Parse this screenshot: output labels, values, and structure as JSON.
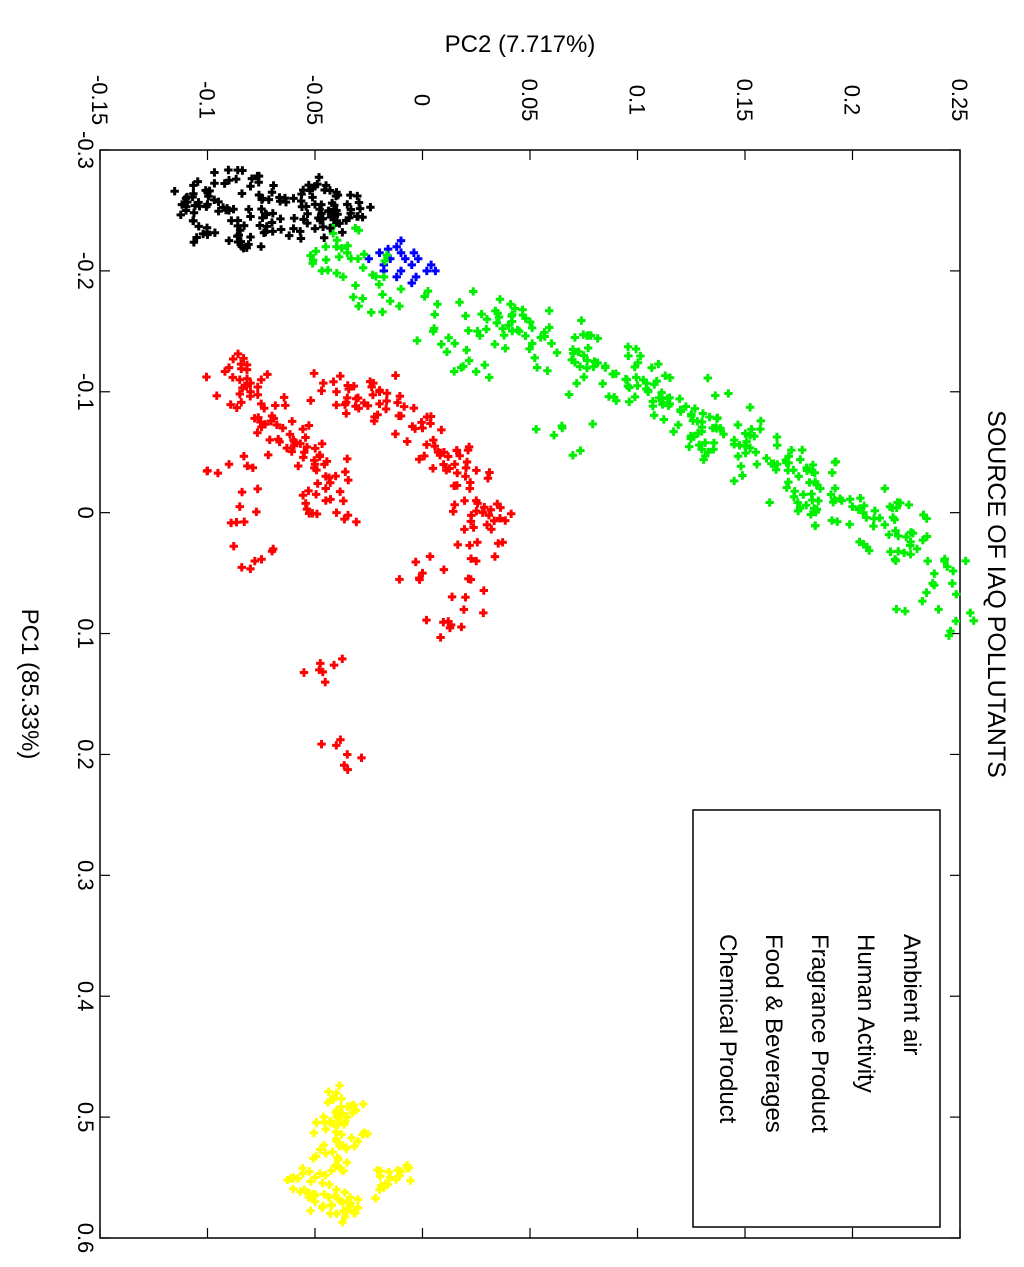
{
  "chart_data": {
    "type": "scatter",
    "title": "SOURCE OF IAQ POLLUTANTS",
    "xlabel": "PC1 (85.33%)",
    "ylabel": "PC2 (7.717%)",
    "xlim": [
      -0.3,
      0.6
    ],
    "ylim": [
      -0.15,
      0.25
    ],
    "xticks": [
      "-0.3",
      "-0.2",
      "-0.1",
      "0",
      "0.1",
      "0.2",
      "0.3",
      "0.4",
      "0.5",
      "0.6"
    ],
    "yticks": [
      "-0.15",
      "-0.1",
      "-0.05",
      "0",
      "0.05",
      "0.1",
      "0.15",
      "0.2",
      "0.25"
    ],
    "orientation": "rotated-90-clockwise",
    "grid": false,
    "legend_position": "bottom-right",
    "series": [
      {
        "name": "Ambient air",
        "color": "#0000FF",
        "points": [
          [
            -0.215,
            -0.01
          ],
          [
            -0.21,
            -0.015
          ],
          [
            -0.205,
            -0.005
          ],
          [
            -0.2,
            -0.01
          ],
          [
            -0.2,
            0.002
          ],
          [
            -0.195,
            -0.003
          ],
          [
            -0.21,
            -0.002
          ],
          [
            -0.205,
            -0.018
          ],
          [
            -0.22,
            -0.012
          ],
          [
            -0.19,
            -0.005
          ],
          [
            -0.2,
            -0.018
          ],
          [
            -0.21,
            -0.025
          ],
          [
            -0.215,
            -0.02
          ],
          [
            -0.225,
            -0.01
          ],
          [
            -0.195,
            -0.012
          ],
          [
            -0.205,
            0.004
          ],
          [
            -0.2,
            0.006
          ],
          [
            -0.21,
            -0.008
          ],
          [
            -0.215,
            -0.004
          ],
          [
            -0.218,
            -0.016
          ]
        ]
      },
      {
        "name": "Human Activity",
        "color": "#00EE00",
        "points": [
          [
            -0.22,
            -0.045
          ],
          [
            -0.22,
            -0.04
          ],
          [
            -0.215,
            -0.035
          ],
          [
            -0.21,
            -0.03
          ],
          [
            -0.175,
            -0.015
          ],
          [
            -0.185,
            -0.01
          ],
          [
            -0.15,
            0.005
          ],
          [
            -0.14,
            0.015
          ],
          [
            -0.12,
            0.018
          ],
          [
            -0.16,
            0.03
          ],
          [
            -0.165,
            0.035
          ],
          [
            -0.155,
            0.04
          ],
          [
            -0.15,
            0.045
          ],
          [
            -0.145,
            0.055
          ],
          [
            -0.14,
            0.06
          ],
          [
            -0.135,
            0.07
          ],
          [
            -0.13,
            0.075
          ],
          [
            -0.125,
            0.08
          ],
          [
            -0.12,
            0.085
          ],
          [
            -0.115,
            0.09
          ],
          [
            -0.11,
            0.095
          ],
          [
            -0.105,
            0.1
          ],
          [
            -0.1,
            0.105
          ],
          [
            -0.095,
            0.11
          ],
          [
            -0.09,
            0.115
          ],
          [
            -0.085,
            0.12
          ],
          [
            -0.08,
            0.125
          ],
          [
            -0.075,
            0.13
          ],
          [
            -0.07,
            0.135
          ],
          [
            -0.065,
            0.14
          ],
          [
            -0.06,
            0.145
          ],
          [
            -0.055,
            0.15
          ],
          [
            -0.05,
            0.155
          ],
          [
            -0.045,
            0.16
          ],
          [
            -0.04,
            0.165
          ],
          [
            -0.035,
            0.17
          ],
          [
            -0.03,
            0.175
          ],
          [
            -0.025,
            0.18
          ],
          [
            -0.02,
            0.185
          ],
          [
            -0.015,
            0.19
          ],
          [
            -0.01,
            0.195
          ],
          [
            -0.005,
            0.2
          ],
          [
            0,
            0.205
          ],
          [
            0.005,
            0.21
          ],
          [
            0.01,
            0.215
          ],
          [
            0.015,
            0.22
          ],
          [
            0.02,
            0.225
          ],
          [
            0.03,
            0.23
          ],
          [
            0.04,
            0.235
          ],
          [
            0.06,
            0.238
          ],
          [
            0.08,
            0.24
          ],
          [
            -0.07,
            0.065
          ]
        ],
        "spread": 0.018
      },
      {
        "name": "Fragrance Product",
        "color": "#FF0000",
        "points": [
          [
            -0.12,
            -0.09
          ],
          [
            -0.11,
            -0.085
          ],
          [
            -0.1,
            -0.08
          ],
          [
            -0.09,
            -0.075
          ],
          [
            -0.08,
            -0.07
          ],
          [
            -0.07,
            -0.065
          ],
          [
            -0.06,
            -0.06
          ],
          [
            -0.05,
            -0.055
          ],
          [
            -0.04,
            -0.05
          ],
          [
            -0.03,
            -0.045
          ],
          [
            -0.02,
            -0.045
          ],
          [
            -0.01,
            -0.045
          ],
          [
            0,
            -0.04
          ],
          [
            -0.1,
            -0.04
          ],
          [
            -0.095,
            -0.03
          ],
          [
            -0.09,
            -0.02
          ],
          [
            -0.08,
            -0.01
          ],
          [
            -0.07,
            0
          ],
          [
            -0.06,
            0.005
          ],
          [
            -0.05,
            0.01
          ],
          [
            -0.04,
            0.015
          ],
          [
            -0.03,
            0.02
          ],
          [
            -0.02,
            0.022
          ],
          [
            -0.01,
            0.025
          ],
          [
            0,
            0.028
          ],
          [
            0.01,
            0.03
          ],
          [
            -0.1,
            -0.02
          ],
          [
            -0.095,
            -0.035
          ],
          [
            0.05,
            0.0
          ],
          [
            0.07,
            0.02
          ],
          [
            0.09,
            0.012
          ],
          [
            0.13,
            -0.048
          ],
          [
            0.2,
            -0.035
          ],
          [
            -0.005,
            -0.085
          ],
          [
            0.04,
            -0.078
          ],
          [
            0.04,
            0.025
          ],
          [
            -0.04,
            -0.09
          ],
          [
            -0.11,
            -0.075
          ]
        ],
        "spread": 0.012
      },
      {
        "name": "Food & Beverages",
        "color": "#000000",
        "points": [
          [
            -0.26,
            -0.11
          ],
          [
            -0.255,
            -0.1
          ],
          [
            -0.25,
            -0.09
          ],
          [
            -0.245,
            -0.08
          ],
          [
            -0.24,
            -0.07
          ],
          [
            -0.235,
            -0.06
          ],
          [
            -0.235,
            -0.05
          ],
          [
            -0.24,
            -0.04
          ],
          [
            -0.245,
            -0.03
          ],
          [
            -0.25,
            -0.04
          ],
          [
            -0.255,
            -0.05
          ],
          [
            -0.26,
            -0.06
          ],
          [
            -0.265,
            -0.07
          ],
          [
            -0.27,
            -0.08
          ],
          [
            -0.275,
            -0.09
          ],
          [
            -0.265,
            -0.1
          ],
          [
            -0.23,
            -0.1
          ],
          [
            -0.225,
            -0.09
          ],
          [
            -0.228,
            -0.08
          ],
          [
            -0.25,
            -0.11
          ],
          [
            -0.27,
            -0.05
          ],
          [
            -0.265,
            -0.04
          ],
          [
            -0.255,
            -0.035
          ]
        ],
        "spread": 0.007
      },
      {
        "name": "Chemical Product",
        "color": "#FFFF00",
        "points": [
          [
            0.48,
            -0.04
          ],
          [
            0.5,
            -0.04
          ],
          [
            0.52,
            -0.04
          ],
          [
            0.54,
            -0.04
          ],
          [
            0.56,
            -0.04
          ],
          [
            0.58,
            -0.04
          ],
          [
            0.57,
            -0.05
          ],
          [
            0.56,
            -0.055
          ],
          [
            0.55,
            -0.06
          ],
          [
            0.55,
            -0.05
          ],
          [
            0.57,
            -0.035
          ],
          [
            0.575,
            -0.03
          ],
          [
            0.56,
            -0.02
          ],
          [
            0.55,
            -0.015
          ],
          [
            0.545,
            -0.01
          ],
          [
            0.5,
            -0.035
          ],
          [
            0.52,
            -0.03
          ],
          [
            0.49,
            -0.032
          ],
          [
            0.51,
            -0.045
          ],
          [
            0.53,
            -0.045
          ]
        ],
        "spread": 0.006
      }
    ]
  }
}
